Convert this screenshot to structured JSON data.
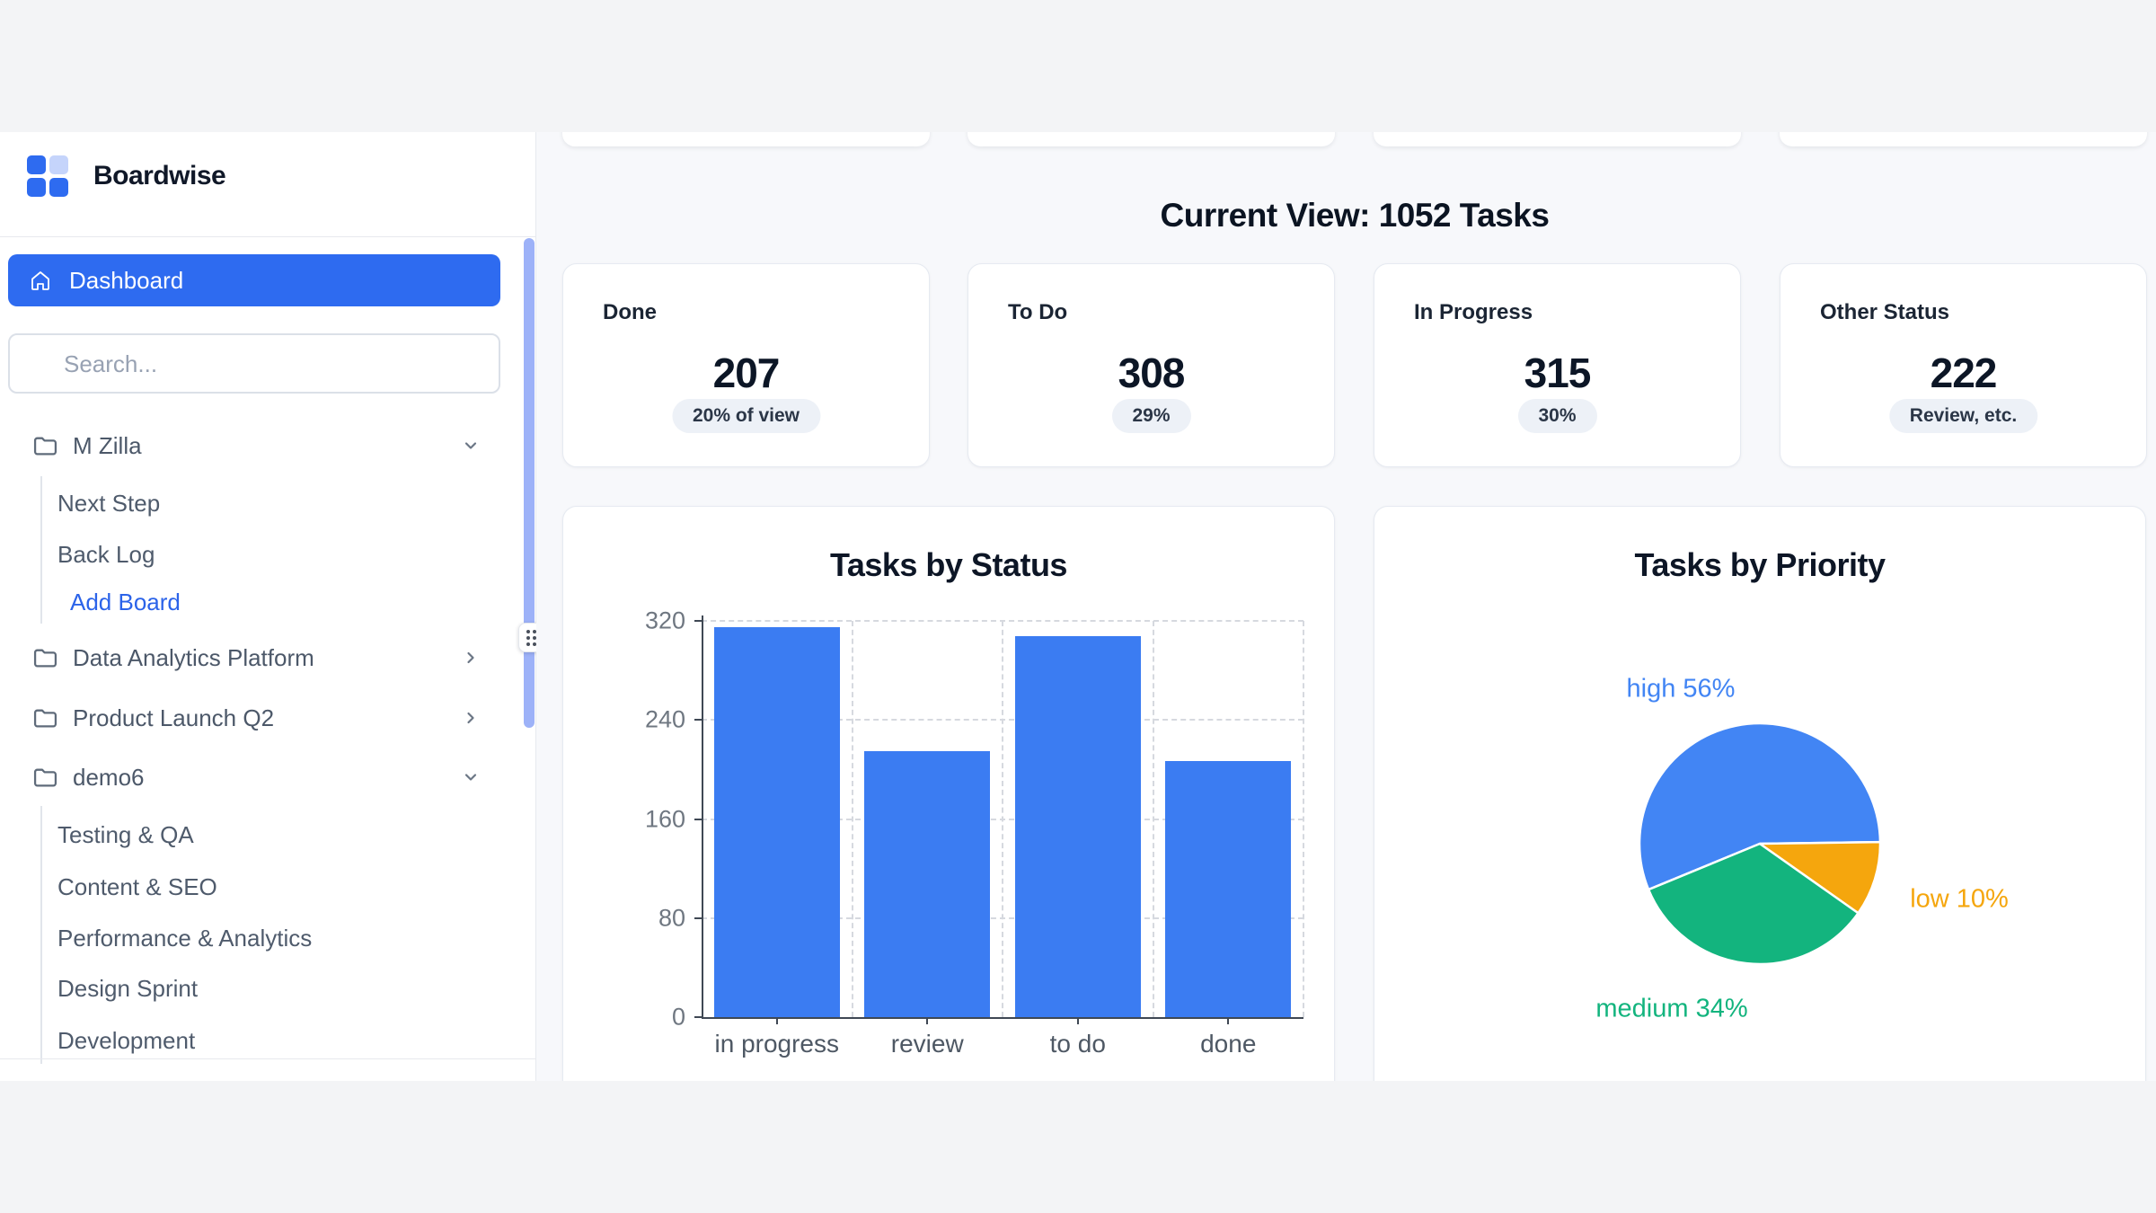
{
  "app": {
    "title": "Boardwise"
  },
  "sidebar": {
    "dashboard_label": "Dashboard",
    "search_placeholder": "Search...",
    "projects": [
      {
        "label": "M Zilla",
        "expanded": true,
        "children": [
          "Next Step",
          "Back Log"
        ],
        "action_label": "Add Board"
      },
      {
        "label": "Data Analytics Platform",
        "expanded": false
      },
      {
        "label": "Product Launch Q2",
        "expanded": false
      },
      {
        "label": "demo6",
        "expanded": true,
        "children": [
          "Testing & QA",
          "Content & SEO",
          "Performance & Analytics",
          "Design Sprint",
          "Development"
        ]
      }
    ]
  },
  "main": {
    "heading": "Current View: 1052 Tasks",
    "stat_cards": [
      {
        "label": "Done",
        "value": "207",
        "badge": "20% of view"
      },
      {
        "label": "To Do",
        "value": "308",
        "badge": "29%"
      },
      {
        "label": "In Progress",
        "value": "315",
        "badge": "30%"
      },
      {
        "label": "Other Status",
        "value": "222",
        "badge": "Review, etc."
      }
    ]
  },
  "chart_data": [
    {
      "type": "bar",
      "title": "Tasks by Status",
      "categories": [
        "in progress",
        "review",
        "to do",
        "done"
      ],
      "values": [
        315,
        215,
        308,
        207
      ],
      "xlabel": "",
      "ylabel": "",
      "ylim": [
        0,
        320
      ],
      "yticks": [
        0,
        80,
        160,
        240,
        320
      ],
      "grid": "dashed",
      "legend_position": "none",
      "bar_color": "#3b7cf2"
    },
    {
      "type": "pie",
      "title": "Tasks by Priority",
      "slices": [
        {
          "label": "high 56%",
          "name": "high",
          "value": 56,
          "color": "#4285f4"
        },
        {
          "label": "low 10%",
          "name": "low",
          "value": 10,
          "color": "#f5a60d"
        },
        {
          "label": "medium 34%",
          "name": "medium",
          "value": 34,
          "color": "#13b47e"
        }
      ],
      "start_angle_deg": 247.6,
      "legend_position": "labels-outside"
    }
  ],
  "colors": {
    "accent_blue": "#2e6bf0",
    "bar_blue": "#3b7cf2",
    "pie_blue": "#4285f4",
    "pie_orange": "#f5a60d",
    "pie_green": "#13b47e",
    "page_bg": "#f3f4f6",
    "main_bg": "#f7f8fb",
    "scrollbar": "#9db2f8",
    "badge_bg": "#edf1f7"
  }
}
